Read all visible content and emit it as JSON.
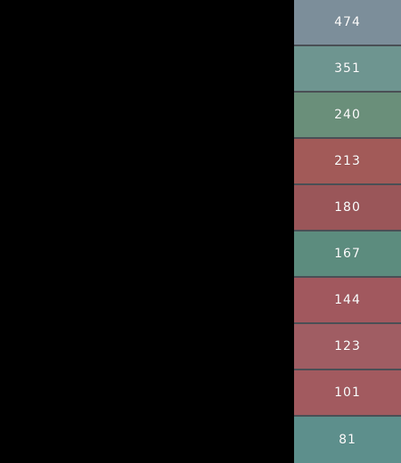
{
  "tiles": [
    {
      "value": "474",
      "color": "#7c8e9a"
    },
    {
      "value": "351",
      "color": "#6e9590"
    },
    {
      "value": "240",
      "color": "#6a8f7a"
    },
    {
      "value": "213",
      "color": "#a25a58"
    },
    {
      "value": "180",
      "color": "#9a5659"
    },
    {
      "value": "167",
      "color": "#5c8c7e"
    },
    {
      "value": "144",
      "color": "#a1585e"
    },
    {
      "value": "123",
      "color": "#a05d63"
    },
    {
      "value": "101",
      "color": "#a25a5f"
    },
    {
      "value": "81",
      "color": "#5d8f8c"
    }
  ]
}
